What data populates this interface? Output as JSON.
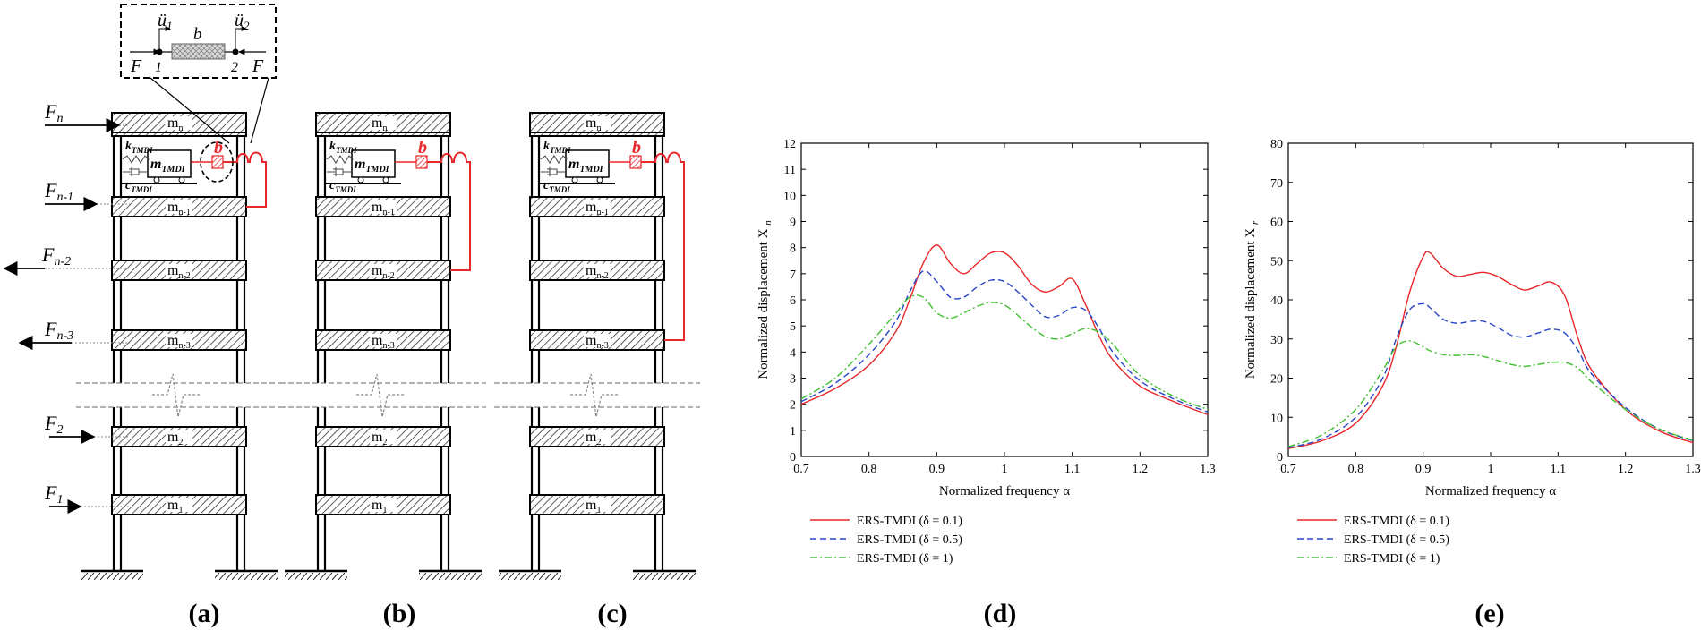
{
  "panel_labels": [
    "(a)",
    "(b)",
    "(c)",
    "(d)",
    "(e)"
  ],
  "forces": [
    {
      "label": "F",
      "sub": "n",
      "dir": "right"
    },
    {
      "label": "F",
      "sub": "n-1",
      "dir": "right"
    },
    {
      "label": "F",
      "sub": "n-2",
      "dir": "left"
    },
    {
      "label": "F",
      "sub": "n-3",
      "dir": "left"
    },
    {
      "label": "F",
      "sub": "2",
      "dir": "right"
    },
    {
      "label": "F",
      "sub": "1",
      "dir": "right"
    }
  ],
  "floor_masses": [
    {
      "m": "m",
      "sub": "n"
    },
    {
      "m": "m",
      "sub": "n-1"
    },
    {
      "m": "m",
      "sub": "n-2"
    },
    {
      "m": "m",
      "sub": "n-3"
    },
    {
      "m": "m",
      "sub": "2"
    },
    {
      "m": "m",
      "sub": "1"
    }
  ],
  "damper": {
    "k": "k",
    "k_sub": "TMDI",
    "c": "c",
    "c_sub": "TMDI",
    "m": "m",
    "m_sub": "TMDI",
    "inerter": "b"
  },
  "inset": {
    "u1": "ü",
    "u1_sub": "1",
    "u2": "ü",
    "u2_sub": "2",
    "node1": "1",
    "node2": "2",
    "b": "b",
    "F_left": "F",
    "F_right": "F"
  },
  "colors": {
    "red": "#e8272a",
    "blue": "#2845c9",
    "green": "#3fbf2f",
    "black": "#000000"
  },
  "chart_data": [
    {
      "type": "line",
      "xlabel": "Normalized frequency α",
      "ylabel": "Normalized displacement X",
      "ylabel_sub": "n",
      "xlim": [
        0.7,
        1.3
      ],
      "ylim": [
        0,
        12
      ],
      "xticks": [
        "0.7",
        "0.8",
        "0.9",
        "1",
        "1.1",
        "1.2",
        "1.3"
      ],
      "yticks": [
        "0",
        "1",
        "2",
        "3",
        "4",
        "5",
        "6",
        "7",
        "8",
        "9",
        "10",
        "11",
        "12"
      ],
      "series": [
        {
          "name": "ERS-TMDI (δ = 0.1)",
          "style": "solid",
          "color": "#e8272a",
          "x": [
            0.7,
            0.75,
            0.8,
            0.84,
            0.86,
            0.88,
            0.9,
            0.92,
            0.94,
            0.96,
            0.98,
            1.0,
            1.02,
            1.04,
            1.06,
            1.08,
            1.1,
            1.12,
            1.14,
            1.16,
            1.2,
            1.25,
            1.3
          ],
          "y": [
            2.0,
            2.6,
            3.5,
            4.8,
            6.0,
            7.4,
            8.1,
            7.4,
            7.0,
            7.4,
            7.8,
            7.8,
            7.3,
            6.6,
            6.3,
            6.5,
            6.8,
            5.8,
            4.6,
            3.7,
            2.7,
            2.1,
            1.6
          ]
        },
        {
          "name": "ERS-TMDI (δ = 0.5)",
          "style": "dashed",
          "color": "#2845c9",
          "x": [
            0.7,
            0.75,
            0.8,
            0.84,
            0.86,
            0.88,
            0.9,
            0.92,
            0.94,
            0.96,
            0.98,
            1.0,
            1.02,
            1.04,
            1.06,
            1.08,
            1.1,
            1.12,
            1.14,
            1.16,
            1.2,
            1.25,
            1.3
          ],
          "y": [
            2.1,
            2.8,
            3.9,
            5.2,
            6.3,
            7.1,
            6.7,
            6.1,
            6.1,
            6.5,
            6.75,
            6.7,
            6.3,
            5.8,
            5.35,
            5.4,
            5.7,
            5.6,
            4.9,
            4.0,
            2.9,
            2.2,
            1.7
          ]
        },
        {
          "name": "ERS-TMDI (δ = 1)",
          "style": "dashdot",
          "color": "#3fbf2f",
          "x": [
            0.7,
            0.75,
            0.8,
            0.84,
            0.86,
            0.88,
            0.9,
            0.92,
            0.94,
            0.96,
            0.98,
            1.0,
            1.02,
            1.04,
            1.06,
            1.08,
            1.1,
            1.12,
            1.14,
            1.16,
            1.2,
            1.25,
            1.3
          ],
          "y": [
            2.2,
            3.0,
            4.3,
            5.5,
            6.1,
            6.1,
            5.5,
            5.3,
            5.5,
            5.75,
            5.9,
            5.8,
            5.4,
            4.95,
            4.6,
            4.5,
            4.7,
            4.9,
            4.75,
            4.3,
            3.1,
            2.3,
            1.8
          ]
        }
      ]
    },
    {
      "type": "line",
      "xlabel": "Normalized frequency α",
      "ylabel": "Normalized displacement X",
      "ylabel_sub": "r",
      "xlim": [
        0.7,
        1.3
      ],
      "ylim": [
        0,
        80
      ],
      "xticks": [
        "0.7",
        "0.8",
        "0.9",
        "1",
        "1.1",
        "1.2",
        "1.3"
      ],
      "yticks": [
        "0",
        "10",
        "20",
        "30",
        "40",
        "50",
        "60",
        "70",
        "80"
      ],
      "series": [
        {
          "name": "ERS-TMDI (δ = 0.1)",
          "style": "solid",
          "color": "#e8272a",
          "x": [
            0.7,
            0.75,
            0.8,
            0.84,
            0.86,
            0.88,
            0.9,
            0.91,
            0.93,
            0.95,
            0.97,
            0.99,
            1.01,
            1.03,
            1.05,
            1.07,
            1.09,
            1.11,
            1.13,
            1.15,
            1.2,
            1.25,
            1.3
          ],
          "y": [
            2.0,
            4.0,
            8.5,
            18.0,
            28.0,
            42.0,
            51.0,
            52.0,
            48.0,
            46.0,
            46.5,
            47.0,
            46.0,
            44.0,
            42.5,
            43.5,
            44.5,
            41.0,
            30.0,
            22.0,
            12.0,
            6.5,
            3.5
          ]
        },
        {
          "name": "ERS-TMDI (δ = 0.5)",
          "style": "dashed",
          "color": "#2845c9",
          "x": [
            0.7,
            0.75,
            0.8,
            0.84,
            0.86,
            0.88,
            0.9,
            0.91,
            0.93,
            0.95,
            0.97,
            0.99,
            1.01,
            1.03,
            1.05,
            1.07,
            1.09,
            1.11,
            1.13,
            1.15,
            1.2,
            1.25,
            1.3
          ],
          "y": [
            2.2,
            4.5,
            10.0,
            20.0,
            30.0,
            37.5,
            39.0,
            38.0,
            35.0,
            34.0,
            34.5,
            34.5,
            33.0,
            31.0,
            30.5,
            31.5,
            32.5,
            31.5,
            27.0,
            21.0,
            12.5,
            7.0,
            4.0
          ]
        },
        {
          "name": "ERS-TMDI (δ = 1)",
          "style": "dashdot",
          "color": "#3fbf2f",
          "x": [
            0.7,
            0.75,
            0.8,
            0.84,
            0.86,
            0.88,
            0.9,
            0.91,
            0.93,
            0.95,
            0.97,
            0.99,
            1.01,
            1.03,
            1.05,
            1.07,
            1.09,
            1.11,
            1.13,
            1.15,
            1.2,
            1.25,
            1.3
          ],
          "y": [
            2.5,
            5.5,
            12.0,
            22.0,
            28.0,
            29.5,
            28.0,
            27.0,
            26.0,
            25.8,
            26.0,
            25.5,
            24.5,
            23.5,
            23.0,
            23.5,
            24.0,
            24.0,
            22.5,
            19.0,
            12.0,
            7.0,
            4.2
          ]
        }
      ]
    }
  ]
}
